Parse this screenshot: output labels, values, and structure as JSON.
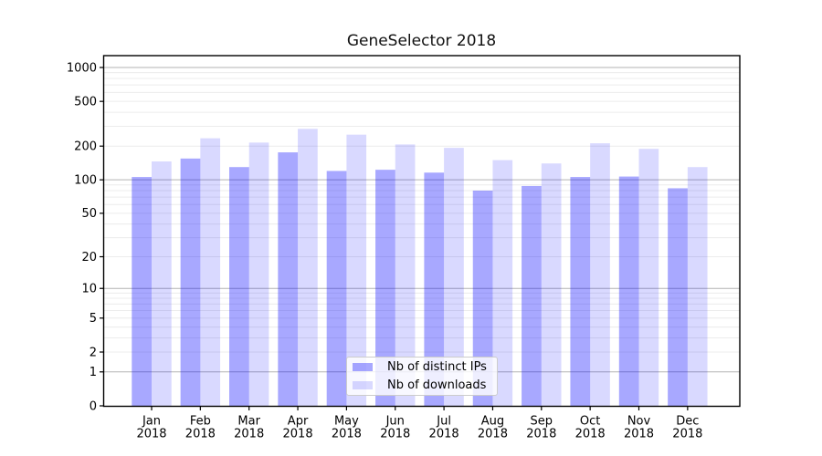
{
  "title": "GeneSelector 2018",
  "chart_data": {
    "type": "bar",
    "title": "GeneSelector 2018",
    "categories": [
      "Jan",
      "Feb",
      "Mar",
      "Apr",
      "May",
      "Jun",
      "Jul",
      "Aug",
      "Sep",
      "Oct",
      "Nov",
      "Dec"
    ],
    "category_year": "2018",
    "series": [
      {
        "name": "Nb of distinct IPs",
        "color": "rgba(0,0,255,0.34)",
        "values": [
          106,
          155,
          130,
          176,
          120,
          123,
          116,
          80,
          88,
          106,
          107,
          84
        ]
      },
      {
        "name": "Nb of downloads",
        "color": "rgba(0,0,255,0.15)",
        "values": [
          146,
          235,
          215,
          285,
          253,
          207,
          193,
          150,
          140,
          212,
          189,
          130
        ]
      }
    ],
    "xlabel": "",
    "ylabel": "",
    "y_scale": "log1p",
    "y_ticks": [
      0,
      1,
      2,
      5,
      10,
      20,
      50,
      100,
      200,
      500,
      1000
    ],
    "ylim": [
      0,
      1275
    ],
    "grid": true,
    "legend_position": "bottom-center"
  },
  "colors": {
    "bar_distinct_ips": "rgba(0,0,255,0.34)",
    "bar_downloads": "rgba(0,0,255,0.15)",
    "grid_major": "#b3b3b3",
    "grid_minor": "#ececec",
    "frame": "#000000",
    "background": "#ffffff",
    "title_text": "#111111"
  }
}
